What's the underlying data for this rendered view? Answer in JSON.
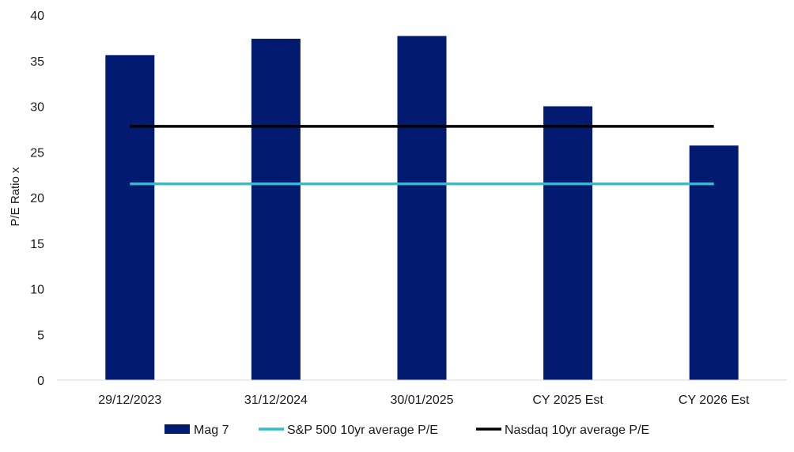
{
  "chart_data": {
    "type": "bar",
    "categories": [
      "29/12/2023",
      "31/12/2024",
      "30/01/2025",
      "CY 2025 Est",
      "CY 2026 Est"
    ],
    "series": [
      {
        "name": "Mag 7",
        "kind": "bar",
        "color": "#021b70",
        "values": [
          35.6,
          37.4,
          37.7,
          30.0,
          25.7
        ]
      },
      {
        "name": "S&P 500 10yr average P/E",
        "kind": "line",
        "color": "#2ebfcc",
        "values": [
          21.5,
          21.5,
          21.5,
          21.5,
          21.5
        ]
      },
      {
        "name": "Nasdaq 10yr average P/E",
        "kind": "line",
        "color": "#000000",
        "values": [
          27.8,
          27.8,
          27.8,
          27.8,
          27.8
        ]
      }
    ],
    "title": "",
    "xlabel": "",
    "ylabel": "P/E Ratio x",
    "ylim": [
      0,
      40
    ],
    "yticks": [
      0,
      5,
      10,
      15,
      20,
      25,
      30,
      35,
      40
    ],
    "grid": false,
    "legend_position": "bottom"
  }
}
